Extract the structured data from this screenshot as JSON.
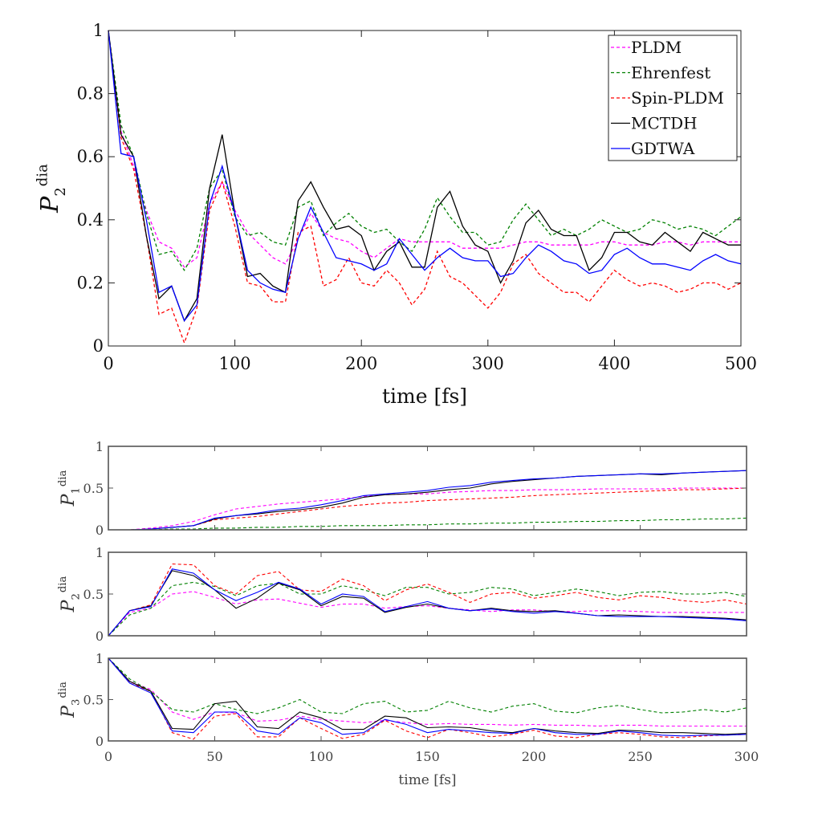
{
  "chart_data": [
    {
      "type": "line",
      "xlabel": "time [fs]",
      "ylabel": {
        "symbol": "P",
        "sub": "2",
        "sup": "dia"
      },
      "xlim": [
        0,
        500
      ],
      "ylim": [
        0,
        1
      ],
      "xticks": [
        0,
        100,
        200,
        300,
        400,
        500
      ],
      "yticks": [
        0,
        0.2,
        0.4,
        0.6,
        0.8,
        1
      ],
      "ytick_labels": [
        "0",
        "0.2",
        "0.4",
        "0.6",
        "0.8",
        "1"
      ],
      "grid": false,
      "legend_position": "top-right",
      "x": [
        0,
        10,
        20,
        30,
        40,
        50,
        60,
        70,
        80,
        90,
        100,
        110,
        120,
        130,
        140,
        150,
        160,
        170,
        180,
        190,
        200,
        210,
        220,
        230,
        240,
        250,
        260,
        270,
        280,
        290,
        300,
        310,
        320,
        330,
        340,
        350,
        360,
        370,
        380,
        390,
        400,
        410,
        420,
        430,
        440,
        450,
        460,
        470,
        480,
        490,
        500
      ],
      "series": [
        {
          "name": "PLDM",
          "color": "#ff00ff",
          "dash": true,
          "values": [
            1,
            0.68,
            0.57,
            0.43,
            0.33,
            0.31,
            0.25,
            0.28,
            0.45,
            0.52,
            0.43,
            0.36,
            0.32,
            0.28,
            0.26,
            0.34,
            0.42,
            0.36,
            0.34,
            0.33,
            0.3,
            0.28,
            0.31,
            0.34,
            0.33,
            0.33,
            0.33,
            0.33,
            0.31,
            0.31,
            0.31,
            0.31,
            0.32,
            0.33,
            0.33,
            0.32,
            0.32,
            0.32,
            0.32,
            0.33,
            0.33,
            0.32,
            0.32,
            0.32,
            0.33,
            0.33,
            0.32,
            0.33,
            0.33,
            0.33,
            0.33
          ]
        },
        {
          "name": "Ehrenfest",
          "color": "#008000",
          "dash": true,
          "values": [
            1,
            0.7,
            0.6,
            0.42,
            0.29,
            0.3,
            0.24,
            0.31,
            0.5,
            0.56,
            0.41,
            0.35,
            0.36,
            0.33,
            0.32,
            0.44,
            0.46,
            0.35,
            0.39,
            0.42,
            0.38,
            0.36,
            0.37,
            0.33,
            0.3,
            0.37,
            0.47,
            0.41,
            0.36,
            0.36,
            0.32,
            0.33,
            0.4,
            0.45,
            0.4,
            0.35,
            0.37,
            0.35,
            0.37,
            0.4,
            0.38,
            0.36,
            0.37,
            0.4,
            0.39,
            0.37,
            0.38,
            0.37,
            0.35,
            0.38,
            0.41
          ]
        },
        {
          "name": "Spin-PLDM",
          "color": "#ff0000",
          "dash": true,
          "values": [
            1,
            0.66,
            0.56,
            0.35,
            0.1,
            0.12,
            0.01,
            0.12,
            0.43,
            0.52,
            0.38,
            0.2,
            0.19,
            0.14,
            0.14,
            0.36,
            0.38,
            0.19,
            0.21,
            0.28,
            0.2,
            0.19,
            0.24,
            0.2,
            0.13,
            0.18,
            0.3,
            0.22,
            0.2,
            0.16,
            0.12,
            0.17,
            0.26,
            0.29,
            0.23,
            0.2,
            0.17,
            0.17,
            0.14,
            0.19,
            0.24,
            0.21,
            0.19,
            0.2,
            0.19,
            0.17,
            0.18,
            0.2,
            0.2,
            0.18,
            0.2
          ]
        },
        {
          "name": "MCTDH",
          "color": "#000000",
          "dash": false,
          "values": [
            1,
            0.67,
            0.6,
            0.35,
            0.15,
            0.19,
            0.08,
            0.15,
            0.5,
            0.67,
            0.42,
            0.22,
            0.23,
            0.19,
            0.17,
            0.46,
            0.52,
            0.44,
            0.37,
            0.38,
            0.35,
            0.24,
            0.3,
            0.33,
            0.25,
            0.25,
            0.44,
            0.49,
            0.38,
            0.32,
            0.3,
            0.2,
            0.27,
            0.39,
            0.43,
            0.37,
            0.35,
            0.35,
            0.24,
            0.28,
            0.36,
            0.36,
            0.33,
            0.32,
            0.36,
            0.33,
            0.3,
            0.36,
            0.34,
            0.32,
            0.32
          ]
        },
        {
          "name": "GDTWA",
          "color": "#0000ff",
          "dash": false,
          "values": [
            1,
            0.61,
            0.6,
            0.4,
            0.17,
            0.19,
            0.08,
            0.13,
            0.45,
            0.57,
            0.42,
            0.24,
            0.2,
            0.18,
            0.17,
            0.34,
            0.44,
            0.36,
            0.28,
            0.27,
            0.26,
            0.24,
            0.26,
            0.34,
            0.29,
            0.24,
            0.28,
            0.31,
            0.28,
            0.27,
            0.27,
            0.22,
            0.23,
            0.28,
            0.32,
            0.3,
            0.27,
            0.26,
            0.23,
            0.24,
            0.29,
            0.31,
            0.28,
            0.26,
            0.26,
            0.25,
            0.24,
            0.27,
            0.29,
            0.27,
            0.26
          ]
        }
      ]
    },
    {
      "type": "line",
      "ylabel": {
        "symbol": "P",
        "sub": "1",
        "sup": "dia"
      },
      "xlim": [
        0,
        300
      ],
      "ylim": [
        0,
        1
      ],
      "xticks": [
        0,
        50,
        100,
        150,
        200,
        250,
        300
      ],
      "yticks": [
        0,
        0.5,
        1
      ],
      "ytick_labels": [
        "0",
        "0.5",
        "1"
      ],
      "x": [
        0,
        10,
        20,
        30,
        40,
        50,
        60,
        70,
        80,
        90,
        100,
        110,
        120,
        130,
        140,
        150,
        160,
        170,
        180,
        190,
        200,
        210,
        220,
        230,
        240,
        250,
        260,
        270,
        280,
        290,
        300
      ],
      "series": [
        {
          "color": "#ff00ff",
          "dash": true,
          "values": [
            0,
            0,
            0.02,
            0.05,
            0.1,
            0.18,
            0.25,
            0.28,
            0.31,
            0.33,
            0.35,
            0.37,
            0.4,
            0.42,
            0.43,
            0.43,
            0.45,
            0.46,
            0.47,
            0.47,
            0.48,
            0.48,
            0.48,
            0.49,
            0.49,
            0.49,
            0.49,
            0.5,
            0.5,
            0.5,
            0.5
          ]
        },
        {
          "color": "#008000",
          "dash": true,
          "values": [
            0,
            0,
            0,
            0.01,
            0.01,
            0.02,
            0.02,
            0.03,
            0.03,
            0.04,
            0.04,
            0.05,
            0.05,
            0.05,
            0.06,
            0.06,
            0.07,
            0.07,
            0.08,
            0.08,
            0.09,
            0.09,
            0.1,
            0.1,
            0.11,
            0.11,
            0.12,
            0.12,
            0.13,
            0.13,
            0.14
          ]
        },
        {
          "color": "#ff0000",
          "dash": true,
          "values": [
            0,
            0,
            0.01,
            0.03,
            0.05,
            0.12,
            0.14,
            0.16,
            0.19,
            0.22,
            0.25,
            0.28,
            0.3,
            0.32,
            0.33,
            0.35,
            0.36,
            0.37,
            0.38,
            0.39,
            0.41,
            0.42,
            0.43,
            0.44,
            0.45,
            0.46,
            0.47,
            0.48,
            0.48,
            0.49,
            0.5
          ]
        },
        {
          "color": "#000000",
          "dash": false,
          "values": [
            0,
            0,
            0.01,
            0.03,
            0.05,
            0.13,
            0.17,
            0.19,
            0.22,
            0.24,
            0.27,
            0.32,
            0.39,
            0.42,
            0.43,
            0.45,
            0.48,
            0.5,
            0.55,
            0.58,
            0.6,
            0.62,
            0.64,
            0.65,
            0.66,
            0.67,
            0.66,
            0.68,
            0.69,
            0.7,
            0.71
          ]
        },
        {
          "color": "#0000ff",
          "dash": false,
          "values": [
            0,
            0,
            0.01,
            0.03,
            0.05,
            0.14,
            0.17,
            0.2,
            0.24,
            0.26,
            0.3,
            0.35,
            0.41,
            0.43,
            0.45,
            0.47,
            0.51,
            0.53,
            0.57,
            0.59,
            0.61,
            0.62,
            0.64,
            0.65,
            0.66,
            0.67,
            0.67,
            0.68,
            0.69,
            0.7,
            0.71
          ]
        }
      ]
    },
    {
      "type": "line",
      "ylabel": {
        "symbol": "P",
        "sub": "2",
        "sup": "dia"
      },
      "xlim": [
        0,
        300
      ],
      "ylim": [
        0,
        1
      ],
      "xticks": [
        0,
        50,
        100,
        150,
        200,
        250,
        300
      ],
      "yticks": [
        0,
        0.5,
        1
      ],
      "ytick_labels": [
        "0",
        "0.5",
        "1"
      ],
      "x": [
        0,
        10,
        20,
        30,
        40,
        50,
        60,
        70,
        80,
        90,
        100,
        110,
        120,
        130,
        140,
        150,
        160,
        170,
        180,
        190,
        200,
        210,
        220,
        230,
        240,
        250,
        260,
        270,
        280,
        290,
        300
      ],
      "series": [
        {
          "color": "#ff00ff",
          "dash": true,
          "values": [
            0,
            0.28,
            0.33,
            0.5,
            0.53,
            0.46,
            0.38,
            0.43,
            0.44,
            0.39,
            0.34,
            0.38,
            0.38,
            0.33,
            0.35,
            0.36,
            0.33,
            0.31,
            0.29,
            0.31,
            0.31,
            0.29,
            0.29,
            0.3,
            0.3,
            0.29,
            0.28,
            0.28,
            0.28,
            0.28,
            0.28
          ]
        },
        {
          "color": "#008000",
          "dash": true,
          "values": [
            0,
            0.25,
            0.33,
            0.6,
            0.64,
            0.59,
            0.48,
            0.6,
            0.63,
            0.5,
            0.5,
            0.6,
            0.55,
            0.48,
            0.58,
            0.58,
            0.5,
            0.52,
            0.58,
            0.56,
            0.48,
            0.52,
            0.56,
            0.53,
            0.48,
            0.52,
            0.53,
            0.5,
            0.5,
            0.52,
            0.47
          ]
        },
        {
          "color": "#ff0000",
          "dash": true,
          "values": [
            0,
            0.3,
            0.37,
            0.86,
            0.85,
            0.6,
            0.5,
            0.72,
            0.77,
            0.55,
            0.53,
            0.68,
            0.6,
            0.42,
            0.55,
            0.62,
            0.52,
            0.4,
            0.5,
            0.52,
            0.45,
            0.48,
            0.52,
            0.46,
            0.43,
            0.48,
            0.46,
            0.42,
            0.4,
            0.43,
            0.38
          ]
        },
        {
          "color": "#000000",
          "dash": false,
          "values": [
            0,
            0.3,
            0.36,
            0.78,
            0.72,
            0.55,
            0.33,
            0.45,
            0.63,
            0.55,
            0.36,
            0.47,
            0.45,
            0.28,
            0.34,
            0.38,
            0.33,
            0.3,
            0.33,
            0.3,
            0.29,
            0.3,
            0.27,
            0.24,
            0.25,
            0.24,
            0.23,
            0.23,
            0.22,
            0.21,
            0.19
          ]
        },
        {
          "color": "#0000ff",
          "dash": false,
          "values": [
            0,
            0.3,
            0.35,
            0.8,
            0.75,
            0.55,
            0.42,
            0.52,
            0.64,
            0.56,
            0.38,
            0.5,
            0.47,
            0.29,
            0.35,
            0.41,
            0.33,
            0.3,
            0.32,
            0.29,
            0.27,
            0.29,
            0.27,
            0.24,
            0.23,
            0.23,
            0.23,
            0.22,
            0.21,
            0.2,
            0.18
          ]
        }
      ]
    },
    {
      "type": "line",
      "xlabel": "time [fs]",
      "ylabel": {
        "symbol": "P",
        "sub": "3",
        "sup": "dia"
      },
      "xlim": [
        0,
        300
      ],
      "ylim": [
        0,
        1
      ],
      "xticks": [
        0,
        50,
        100,
        150,
        200,
        250,
        300
      ],
      "xtick_labels": [
        "0",
        "50",
        "100",
        "150",
        "200",
        "250",
        "300"
      ],
      "yticks": [
        0,
        0.5,
        1
      ],
      "ytick_labels": [
        "0",
        "0.5",
        "1"
      ],
      "x": [
        0,
        10,
        20,
        30,
        40,
        50,
        60,
        70,
        80,
        90,
        100,
        110,
        120,
        130,
        140,
        150,
        160,
        170,
        180,
        190,
        200,
        210,
        220,
        230,
        240,
        250,
        260,
        270,
        280,
        290,
        300
      ],
      "series": [
        {
          "color": "#ff00ff",
          "dash": true,
          "values": [
            1,
            0.72,
            0.62,
            0.35,
            0.26,
            0.35,
            0.34,
            0.24,
            0.25,
            0.3,
            0.26,
            0.24,
            0.22,
            0.25,
            0.22,
            0.2,
            0.21,
            0.2,
            0.2,
            0.19,
            0.2,
            0.19,
            0.19,
            0.18,
            0.19,
            0.19,
            0.18,
            0.18,
            0.18,
            0.18,
            0.18
          ]
        },
        {
          "color": "#008000",
          "dash": true,
          "values": [
            1,
            0.75,
            0.6,
            0.38,
            0.35,
            0.45,
            0.38,
            0.33,
            0.4,
            0.5,
            0.35,
            0.33,
            0.45,
            0.48,
            0.35,
            0.37,
            0.48,
            0.4,
            0.35,
            0.42,
            0.45,
            0.36,
            0.34,
            0.4,
            0.43,
            0.38,
            0.34,
            0.35,
            0.38,
            0.35,
            0.4
          ]
        },
        {
          "color": "#ff0000",
          "dash": true,
          "values": [
            1,
            0.7,
            0.6,
            0.1,
            0.02,
            0.3,
            0.33,
            0.05,
            0.05,
            0.28,
            0.15,
            0.03,
            0.08,
            0.25,
            0.12,
            0.04,
            0.14,
            0.1,
            0.05,
            0.08,
            0.13,
            0.06,
            0.04,
            0.08,
            0.1,
            0.08,
            0.05,
            0.04,
            0.06,
            0.07,
            0.08
          ]
        },
        {
          "color": "#000000",
          "dash": false,
          "values": [
            1,
            0.72,
            0.6,
            0.15,
            0.14,
            0.45,
            0.48,
            0.17,
            0.15,
            0.35,
            0.28,
            0.14,
            0.14,
            0.3,
            0.28,
            0.16,
            0.17,
            0.16,
            0.12,
            0.1,
            0.15,
            0.12,
            0.1,
            0.09,
            0.13,
            0.12,
            0.1,
            0.1,
            0.09,
            0.08,
            0.09
          ]
        },
        {
          "color": "#0000ff",
          "dash": false,
          "values": [
            1,
            0.7,
            0.58,
            0.12,
            0.1,
            0.35,
            0.35,
            0.12,
            0.08,
            0.28,
            0.22,
            0.08,
            0.1,
            0.26,
            0.2,
            0.1,
            0.14,
            0.12,
            0.1,
            0.09,
            0.15,
            0.1,
            0.08,
            0.08,
            0.12,
            0.1,
            0.07,
            0.06,
            0.07,
            0.07,
            0.08
          ]
        }
      ]
    }
  ]
}
